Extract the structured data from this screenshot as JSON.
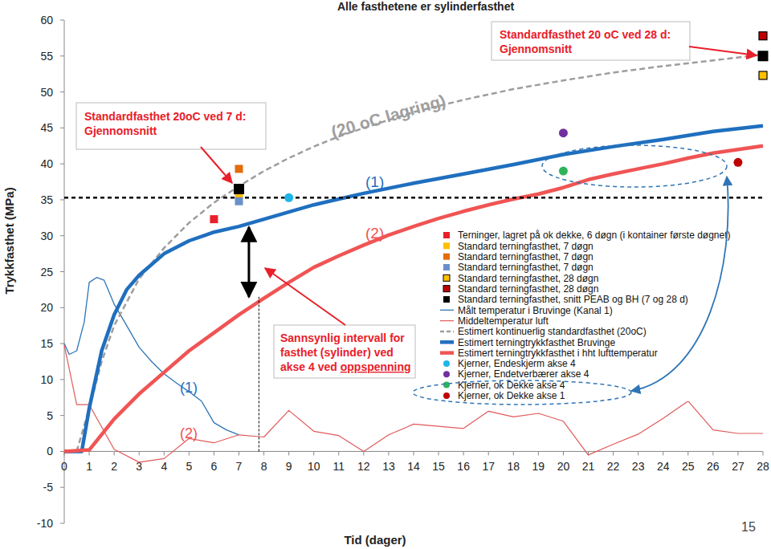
{
  "chart_data": {
    "type": "line",
    "title": "Alle fasthetene er sylinderfasthet",
    "x_label": "Tid (dager)",
    "y_label": "Trykkfasthet (MPa)",
    "page_number": "15",
    "xlim": [
      0,
      28
    ],
    "xticks": [
      0,
      1,
      2,
      3,
      4,
      5,
      6,
      7,
      8,
      9,
      10,
      11,
      12,
      13,
      14,
      15,
      16,
      17,
      18,
      19,
      20,
      21,
      22,
      23,
      24,
      25,
      26,
      27,
      28
    ],
    "ylim": [
      -10,
      60
    ],
    "yticks": [
      -10,
      -5,
      0,
      5,
      10,
      15,
      20,
      25,
      30,
      35,
      40,
      45,
      50,
      55,
      60
    ],
    "grid": false,
    "legend": "right",
    "hlines": [
      35.3
    ],
    "vline": 7.8,
    "interval": {
      "x": 7.4,
      "values": [
        21.5,
        31.2
      ]
    },
    "series": [
      {
        "name": "Terninger, lagret på ok dekke, 6 døgn (i kontainer første døgnet)",
        "type": "scatter",
        "marker": "square",
        "color": "#e8202a",
        "x": [
          6
        ],
        "values": [
          32.3
        ]
      },
      {
        "name": "Standard terningfasthet, 7 døgn",
        "type": "scatter",
        "marker": "square",
        "color": "#ffc000",
        "x": [
          7
        ],
        "values": [
          35.8
        ]
      },
      {
        "name": "Standard terningfasthet, 7 døgn",
        "type": "scatter",
        "marker": "square",
        "color": "#e46c0a",
        "x": [
          7
        ],
        "values": [
          39.3
        ]
      },
      {
        "name": "Standard terningfasthet, 7 døgn",
        "type": "scatter",
        "marker": "square",
        "color": "#6a8fcb",
        "x": [
          7
        ],
        "values": [
          34.8
        ]
      },
      {
        "name": "Standard terningfasthet, 28 døgn",
        "type": "scatter",
        "marker": "square-outlined",
        "color": "#ffc000",
        "x": [
          28
        ],
        "values": [
          52.3
        ]
      },
      {
        "name": "Standard terningfasthet, 28 døgn",
        "type": "scatter",
        "marker": "square-outlined",
        "color": "#c00000",
        "x": [
          28
        ],
        "values": [
          57.8
        ]
      },
      {
        "name": "Standard terningfasthet, snitt PEAB og BH (7 og 28 d)",
        "type": "scatter",
        "marker": "square",
        "color": "#000000",
        "x": [
          7,
          28
        ],
        "values": [
          36.5,
          55.0
        ]
      },
      {
        "name": "Målt temperatur i Bruvinge (Kanal 1)",
        "type": "line",
        "line_style": "solid",
        "color": "#2e75b6",
        "x": [
          0,
          0.2,
          0.5,
          0.8,
          1,
          1.3,
          1.6,
          2,
          2.5,
          3,
          3.5,
          4,
          4.5,
          5,
          5.5,
          6,
          6.5,
          7
        ],
        "values": [
          15,
          13.5,
          14,
          18,
          23.5,
          24.2,
          23.8,
          20.5,
          17.5,
          14.5,
          12.5,
          10.8,
          9.5,
          8.3,
          7,
          4,
          3,
          2.3
        ]
      },
      {
        "name": "Middeltemperatur luft",
        "type": "line",
        "line_style": "solid",
        "color": "#e05a5a",
        "x": [
          0,
          0.5,
          1,
          2,
          3,
          4,
          5,
          6,
          7,
          8,
          9,
          10,
          11,
          12,
          13,
          14,
          15,
          16,
          17,
          18,
          19,
          20,
          21,
          22,
          23,
          24,
          25,
          26,
          27,
          28
        ],
        "values": [
          14.8,
          6.5,
          6.5,
          0.3,
          -1.5,
          -1,
          1.8,
          1.2,
          2.3,
          2,
          5.7,
          2.8,
          2.2,
          0,
          2.3,
          3.8,
          3.5,
          3.2,
          5.6,
          4.8,
          5.3,
          4.2,
          -0.5,
          1,
          2.4,
          4.6,
          7,
          3,
          2.5,
          2.5
        ]
      },
      {
        "name": "Estimert kontinuerlig standardfasthet (20oC)",
        "type": "line",
        "line_style": "dashed",
        "color": "#9e9e9e",
        "x": [
          0.5,
          1,
          1.5,
          2,
          3,
          4,
          5,
          6,
          7,
          8,
          9,
          10,
          11,
          12,
          14,
          16,
          18,
          20,
          22,
          24,
          26,
          28
        ],
        "values": [
          0,
          6,
          12.5,
          17.5,
          24,
          28.3,
          31.8,
          34.6,
          36.9,
          39,
          40.8,
          42.4,
          43.8,
          45,
          47.2,
          48.9,
          50.4,
          51.6,
          52.7,
          53.6,
          54.4,
          55.2
        ]
      },
      {
        "name": "Estimert terningtrykkfasthet Bruvinge",
        "type": "line",
        "line_style": "solid",
        "color": "#1f6fbf",
        "x": [
          0,
          0.7,
          1,
          1.5,
          2,
          2.5,
          3,
          4,
          5,
          6,
          7,
          8,
          9,
          10,
          11,
          12,
          14,
          16,
          18,
          20,
          22,
          24,
          26,
          28
        ],
        "values": [
          0,
          0,
          6,
          14,
          19,
          22.5,
          24.5,
          27.5,
          29.3,
          30.5,
          31.3,
          32.3,
          33.3,
          34.3,
          35.1,
          35.9,
          37.3,
          38.6,
          39.9,
          41.3,
          42.4,
          43.4,
          44.5,
          45.3
        ]
      },
      {
        "name": "Estimert terningtrykkfasthet i hht lufttemperatur",
        "type": "line",
        "line_style": "solid",
        "color": "#f05454",
        "x": [
          0,
          1,
          2,
          3,
          4,
          5,
          6,
          7,
          8,
          9,
          10,
          11,
          12,
          13,
          14,
          15,
          16,
          17,
          18,
          19,
          20,
          21,
          22,
          23,
          24,
          25,
          26,
          27,
          28
        ],
        "values": [
          0,
          0.2,
          4.5,
          8,
          11,
          14,
          16.5,
          19,
          21.3,
          23.5,
          25.6,
          27.2,
          28.7,
          30.1,
          31.3,
          32.4,
          33.4,
          34.3,
          35.1,
          35.8,
          36.7,
          37.8,
          38.6,
          39.3,
          40,
          40.8,
          41.5,
          42,
          42.5
        ]
      },
      {
        "name": "Kjerner, Endeskjerm akse 4",
        "type": "scatter",
        "marker": "circle",
        "color": "#1fb5e8",
        "x": [
          9
        ],
        "values": [
          35.3
        ]
      },
      {
        "name": "Kjerner, Endetverbærer akse 4",
        "type": "scatter",
        "marker": "circle",
        "color": "#7030a0",
        "x": [
          20
        ],
        "values": [
          44.3
        ]
      },
      {
        "name": "Kjerner, ok Dekke akse 4",
        "type": "scatter",
        "marker": "circle",
        "color": "#2fb35a",
        "x": [
          20
        ],
        "values": [
          39.0
        ]
      },
      {
        "name": "Kjerner, ok Dekke akse 1",
        "type": "scatter",
        "marker": "circle",
        "color": "#c00000",
        "x": [
          27
        ],
        "values": [
          40.2
        ]
      }
    ],
    "annotations": [
      {
        "lines": [
          "Standardfasthet 20oC ved 7 d:",
          "Gjennomsnitt"
        ],
        "color": "#e8202a"
      },
      {
        "lines": [
          "Standardfasthet 20 oC ved 28 d:",
          "Gjennomsnitt"
        ],
        "color": "#e8202a"
      },
      {
        "lines": [
          "(20 oC lagring)"
        ],
        "color": "#9e9e9e"
      },
      {
        "lines": [
          "(1)"
        ],
        "color": "#1f6fbf"
      },
      {
        "lines": [
          "(2)"
        ],
        "color": "#f05454"
      },
      {
        "lines": [
          "(1)"
        ],
        "color": "#1f6fbf"
      },
      {
        "lines": [
          "(2)"
        ],
        "color": "#f05454"
      },
      {
        "lines": [
          "Sannsynlig intervall for",
          "fasthet (sylinder) ved",
          "akse 4 ved oppspenning"
        ],
        "underline": "oppspenning",
        "color": "#e8202a"
      }
    ]
  }
}
